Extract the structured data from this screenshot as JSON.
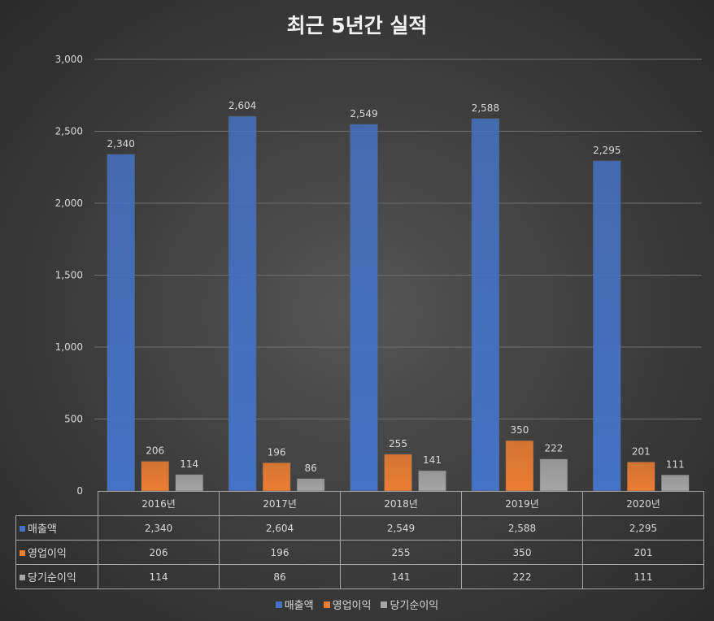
{
  "chart_data": {
    "type": "bar",
    "title": "최근 5년간 실적",
    "categories": [
      "2016년",
      "2017년",
      "2018년",
      "2019년",
      "2020년"
    ],
    "series": [
      {
        "name": "매출액",
        "color": "#4472c4",
        "values": [
          2340,
          2604,
          2549,
          2588,
          2295
        ],
        "labels": [
          "2,340",
          "2,604",
          "2,549",
          "2,588",
          "2,295"
        ]
      },
      {
        "name": "영업이익",
        "color": "#ed7d31",
        "values": [
          206,
          196,
          255,
          350,
          201
        ],
        "labels": [
          "206",
          "196",
          "255",
          "350",
          "201"
        ]
      },
      {
        "name": "당기순이익",
        "color": "#a5a5a5",
        "values": [
          114,
          86,
          141,
          222,
          111
        ],
        "labels": [
          "114",
          "86",
          "141",
          "222",
          "111"
        ]
      }
    ],
    "ylim": [
      0,
      3000
    ],
    "yticks": [
      0,
      500,
      1000,
      1500,
      2000,
      2500,
      3000
    ],
    "ytick_labels": [
      "0",
      "500",
      "1,000",
      "1,500",
      "2,000",
      "2,500",
      "3,000"
    ],
    "grid": true,
    "data_table": true,
    "legend": "bottom"
  }
}
